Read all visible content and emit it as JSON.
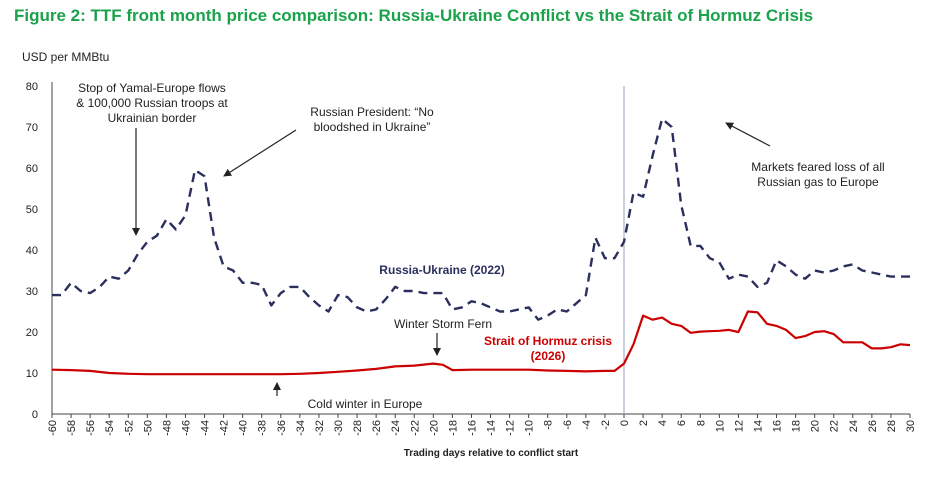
{
  "chart_data": {
    "type": "line",
    "title": "Figure 2: TTF front month price comparison: Russia-Ukraine Conflict vs the Strait of Hormuz Crisis",
    "ylabel": "USD per MMBtu",
    "xlabel": "Trading days relative to conflict start",
    "xlim": [
      -60,
      30
    ],
    "ylim": [
      0,
      80
    ],
    "yticks": [
      0,
      10,
      20,
      30,
      40,
      50,
      60,
      70,
      80
    ],
    "xticks": [
      -60,
      -58,
      -56,
      -54,
      -52,
      -50,
      -48,
      -46,
      -44,
      -42,
      -40,
      -38,
      -36,
      -34,
      -32,
      -30,
      -28,
      -26,
      -24,
      -22,
      -20,
      -18,
      -16,
      -14,
      -12,
      -10,
      -8,
      -6,
      -4,
      -2,
      0,
      2,
      4,
      6,
      8,
      10,
      12,
      14,
      16,
      18,
      20,
      22,
      24,
      26,
      28,
      30
    ],
    "series": [
      {
        "name": "Russia-Ukraine (2022)",
        "color": "#2b2f5e",
        "dash": true,
        "x": [
          -60,
          -59,
          -58,
          -57,
          -56,
          -55,
          -54,
          -53,
          -52,
          -51,
          -50,
          -49,
          -48,
          -47,
          -46,
          -45,
          -44,
          -43,
          -42,
          -41,
          -40,
          -39,
          -38,
          -37,
          -36,
          -35,
          -34,
          -33,
          -32,
          -31,
          -30,
          -29,
          -28,
          -27,
          -26,
          -25,
          -24,
          -23,
          -22,
          -21,
          -20,
          -19,
          -18,
          -17,
          -16,
          -15,
          -14,
          -13,
          -12,
          -11,
          -10,
          -9,
          -8,
          -7,
          -6,
          -5,
          -4,
          -3,
          -2,
          -1,
          0,
          1,
          2,
          3,
          4,
          5,
          6,
          7,
          8,
          9,
          10,
          11,
          12,
          13,
          14,
          15,
          16,
          17,
          18,
          19,
          20,
          21,
          22,
          23,
          24,
          25,
          26,
          27,
          28,
          29,
          30
        ],
        "values": [
          29,
          29,
          32,
          30,
          29.5,
          31,
          33.5,
          33,
          35,
          39,
          42,
          43.5,
          47.5,
          45,
          48.5,
          59.5,
          58,
          43,
          36,
          35,
          32,
          32,
          31.5,
          26.5,
          29.5,
          31,
          31,
          28.5,
          26.5,
          25,
          29,
          28.5,
          26,
          25,
          25.5,
          28,
          31,
          30,
          30,
          29.5,
          29.5,
          29.5,
          25.5,
          26,
          27.5,
          27,
          26,
          25,
          25,
          25.5,
          26,
          23,
          24,
          25.5,
          25,
          27,
          29,
          43,
          38,
          38,
          42,
          54,
          53,
          63,
          72,
          70,
          51,
          41,
          41,
          38,
          37,
          33,
          34,
          33.5,
          31,
          32,
          37.5,
          36,
          34,
          33,
          35,
          34.5,
          35,
          36,
          36.5,
          35,
          34.5,
          34,
          33.5,
          33.5,
          33.5
        ]
      },
      {
        "name": "Strait of Hormuz crisis (2026)",
        "color": "#cc0000",
        "dash": false,
        "x": [
          -60,
          -58,
          -56,
          -54,
          -52,
          -50,
          -48,
          -46,
          -44,
          -42,
          -40,
          -38,
          -36,
          -34,
          -32,
          -30,
          -28,
          -26,
          -24,
          -22,
          -20,
          -19,
          -18,
          -16,
          -14,
          -12,
          -10,
          -8,
          -6,
          -4,
          -2,
          -1,
          0,
          1,
          2,
          3,
          4,
          5,
          6,
          7,
          8,
          9,
          10,
          11,
          12,
          13,
          14,
          15,
          16,
          17,
          18,
          19,
          20,
          21,
          22,
          23,
          24,
          25,
          26,
          27,
          28,
          29,
          30
        ],
        "values": [
          10.8,
          10.7,
          10.5,
          10,
          9.8,
          9.7,
          9.7,
          9.7,
          9.7,
          9.7,
          9.7,
          9.7,
          9.7,
          9.8,
          10,
          10.3,
          10.6,
          11,
          11.6,
          11.8,
          12.3,
          12,
          10.7,
          10.8,
          10.8,
          10.8,
          10.8,
          10.6,
          10.5,
          10.4,
          10.5,
          10.5,
          12.3,
          17,
          24,
          23,
          23.5,
          22,
          21.5,
          19.8,
          20.1,
          20.2,
          20.3,
          20.5,
          20,
          25,
          24.8,
          22,
          21.5,
          20.5,
          18.5,
          19,
          20,
          20.2,
          19.5,
          17.5,
          17.5,
          17.5,
          16,
          16,
          16.3,
          17,
          16.8
        ]
      }
    ],
    "annotations": {
      "yamal": [
        "Stop of Yamal-Europe flows",
        "& 100,000 Russian troops at",
        "Ukrainian border"
      ],
      "putin": [
        "Russian President: “No",
        "bloodshed in Ukraine”"
      ],
      "markets": [
        "Markets feared loss of all",
        "Russian gas to Europe"
      ],
      "russia_label": "Russia-Ukraine (2022)",
      "hormuz_label": [
        "Strait of Hormuz crisis",
        "(2026)"
      ],
      "fern": "Winter Storm Fern",
      "cold": "Cold winter in Europe"
    }
  }
}
